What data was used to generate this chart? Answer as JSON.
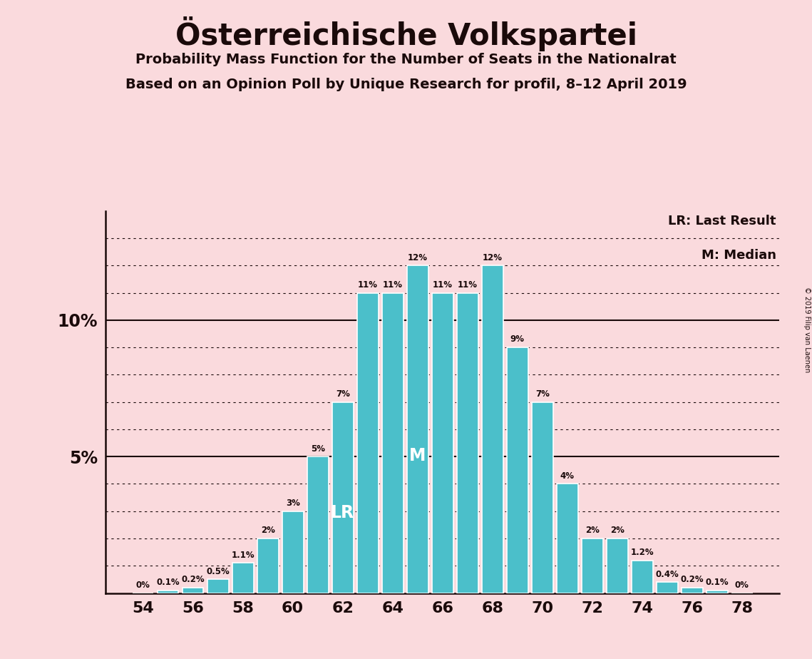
{
  "title": "Österreichische Volkspartei",
  "subtitle1": "Probability Mass Function for the Number of Seats in the Nationalrat",
  "subtitle2": "Based on an Opinion Poll by Unique Research for profil, 8–12 April 2019",
  "copyright": "© 2019 Filip van Laenen",
  "background_color": "#fadadd",
  "bar_color": "#4bbfca",
  "bar_edge_color": "#ffffff",
  "text_color": "#1a0a0a",
  "seats": [
    54,
    55,
    56,
    57,
    58,
    59,
    60,
    61,
    62,
    63,
    64,
    65,
    66,
    67,
    68,
    69,
    70,
    71,
    72,
    73,
    74,
    75,
    76,
    77,
    78
  ],
  "probabilities": [
    0.0,
    0.1,
    0.2,
    0.5,
    1.1,
    2.0,
    3.0,
    5.0,
    7.0,
    11.0,
    11.0,
    12.0,
    11.0,
    11.0,
    12.0,
    9.0,
    7.0,
    4.0,
    2.0,
    2.0,
    1.2,
    0.4,
    0.2,
    0.1,
    0.0
  ],
  "labels": [
    "0%",
    "0.1%",
    "0.2%",
    "0.5%",
    "1.1%",
    "2%",
    "3%",
    "5%",
    "7%",
    "11%",
    "11%",
    "12%",
    "11%",
    "11%",
    "12%",
    "9%",
    "7%",
    "4%",
    "2%",
    "2%",
    "1.2%",
    "0.4%",
    "0.2%",
    "0.1%",
    "0%"
  ],
  "last_result_seat": 62,
  "median_seat": 65,
  "xticks": [
    54,
    56,
    58,
    60,
    62,
    64,
    66,
    68,
    70,
    72,
    74,
    76,
    78
  ],
  "legend_lr": "LR: Last Result",
  "legend_m": "M: Median"
}
